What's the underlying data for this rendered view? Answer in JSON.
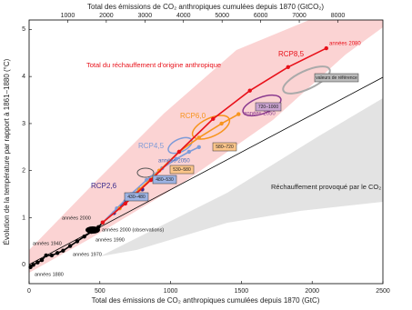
{
  "chart_data": {
    "type": "line",
    "x_label": "Total des émissions de CO₂ anthropiques cumulées depuis 1870 (GtC)",
    "x2_label": "Total des émissions de CO₂ anthropiques cumulées depuis 1870 (GtCO₂)",
    "y_label": "Évolution de la température par rapport à 1861–1880 (°C)",
    "xlim": [
      0,
      2500
    ],
    "xticks": [
      0,
      500,
      1000,
      1500,
      2000,
      2500
    ],
    "x2lim": [
      0,
      9166.67
    ],
    "x2ticks": [
      1000,
      2000,
      3000,
      4000,
      5000,
      6000,
      7000,
      8000
    ],
    "ylim": [
      -0.4,
      5.2
    ],
    "yticks": [
      0,
      1,
      2,
      3,
      4,
      5
    ],
    "series": [
      {
        "color": "#000000",
        "x": [
          10,
          30,
          60,
          90,
          120,
          160,
          200,
          240,
          290,
          340,
          390,
          440,
          490,
          520
        ],
        "values": [
          -0.05,
          0.0,
          0.05,
          0.1,
          0.2,
          0.2,
          0.25,
          0.3,
          0.4,
          0.5,
          0.6,
          0.7,
          0.8,
          0.9
        ]
      },
      {
        "name": "RCP2,6",
        "color": "#3a2a8c",
        "x": [
          520,
          600,
          680,
          740,
          780,
          800
        ],
        "values": [
          0.9,
          1.1,
          1.35,
          1.5,
          1.6,
          1.6
        ]
      },
      {
        "name": "RCP4,5",
        "color": "#7e9bd8",
        "x": [
          520,
          620,
          720,
          830,
          940,
          1040,
          1130,
          1200
        ],
        "values": [
          0.9,
          1.2,
          1.5,
          1.8,
          2.05,
          2.25,
          2.4,
          2.5
        ]
      },
      {
        "name": "RCP6,0",
        "color": "#f7941d",
        "x": [
          520,
          640,
          780,
          920,
          1060,
          1200,
          1360,
          1480
        ],
        "values": [
          0.9,
          1.2,
          1.6,
          2.0,
          2.4,
          2.7,
          3.0,
          3.2
        ]
      },
      {
        "name": "RCP8,5",
        "color": "#e8111a",
        "x": [
          520,
          680,
          860,
          1060,
          1300,
          1560,
          1830,
          2100
        ],
        "values": [
          0.9,
          1.3,
          1.8,
          2.4,
          3.1,
          3.7,
          4.2,
          4.6
        ]
      }
    ],
    "annotations": [
      "Total du réchauffement d'origine anthropique",
      "Réchauffement provoqué par le CO₂",
      "années 2080",
      "années 2050",
      "années 2050",
      "valeurs de référence",
      "720–1000",
      "580–720",
      "530–580",
      "480–530",
      "430–480",
      "années 2000",
      "années 2000 (observations)",
      "années 1990",
      "années 1970",
      "années 1940",
      "années 1880"
    ]
  }
}
